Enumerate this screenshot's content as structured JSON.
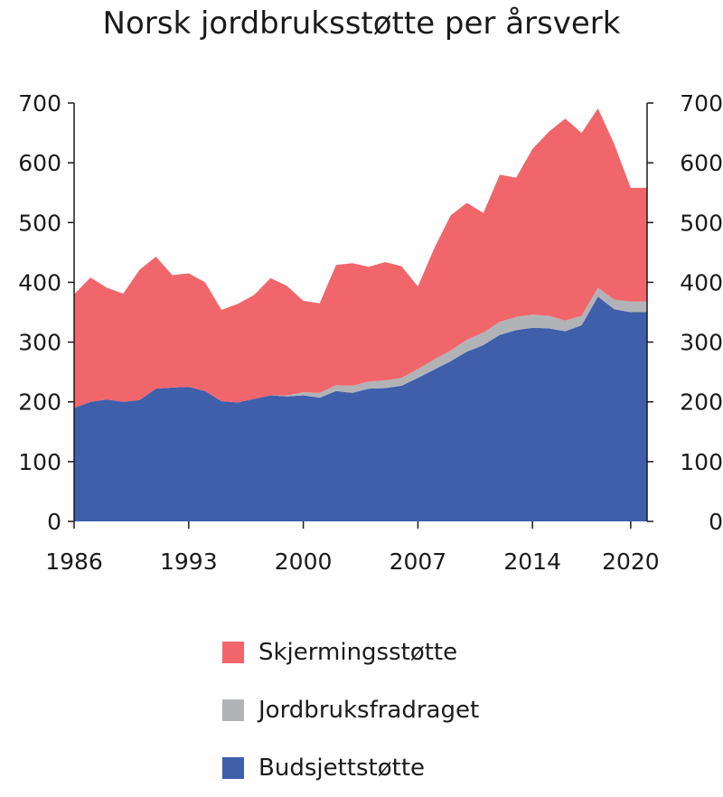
{
  "chart_data": {
    "type": "area",
    "title": "Norsk jordbruksstøtte per årsverk",
    "xlabel": "",
    "ylabel": "",
    "ylim": [
      0,
      700
    ],
    "yticks": [
      0,
      100,
      200,
      300,
      400,
      500,
      600,
      700
    ],
    "xticks": [
      1986,
      1993,
      2000,
      2007,
      2014,
      2020
    ],
    "xlim": [
      1986,
      2021
    ],
    "stacked": true,
    "grid": false,
    "legend_position": "bottom",
    "x": [
      1986,
      1987,
      1988,
      1989,
      1990,
      1991,
      1992,
      1993,
      1994,
      1995,
      1996,
      1997,
      1998,
      1999,
      2000,
      2001,
      2002,
      2003,
      2004,
      2005,
      2006,
      2007,
      2008,
      2009,
      2010,
      2011,
      2012,
      2013,
      2014,
      2015,
      2016,
      2017,
      2018,
      2019,
      2020,
      2021
    ],
    "series": [
      {
        "name": "Budsjettstøtte",
        "color": "#3f5fab",
        "values": [
          190,
          200,
          204,
          200,
          203,
          222,
          224,
          225,
          218,
          201,
          199,
          205,
          211,
          209,
          211,
          207,
          218,
          215,
          222,
          223,
          227,
          240,
          254,
          268,
          284,
          295,
          312,
          320,
          324,
          323,
          318,
          328,
          376,
          355,
          350,
          350
        ]
      },
      {
        "name": "Jordbruksfradraget",
        "color": "#b2b3b6",
        "values": [
          0,
          0,
          0,
          0,
          0,
          0,
          0,
          0,
          0,
          0,
          0,
          0,
          0,
          2,
          5,
          8,
          10,
          12,
          12,
          13,
          13,
          15,
          17,
          18,
          20,
          21,
          22,
          22,
          22,
          21,
          18,
          16,
          15,
          16,
          18,
          18
        ]
      },
      {
        "name": "Skjermingsstøtte",
        "color": "#f0666b",
        "values": [
          190,
          208,
          187,
          181,
          218,
          221,
          188,
          190,
          182,
          153,
          165,
          174,
          196,
          183,
          153,
          150,
          201,
          205,
          192,
          198,
          187,
          138,
          186,
          226,
          229,
          200,
          246,
          233,
          277,
          308,
          338,
          306,
          300,
          260,
          190,
          190
        ]
      }
    ]
  },
  "legend_order": [
    "Skjermingsstøtte",
    "Jordbruksfradraget",
    "Budsjettstøtte"
  ]
}
